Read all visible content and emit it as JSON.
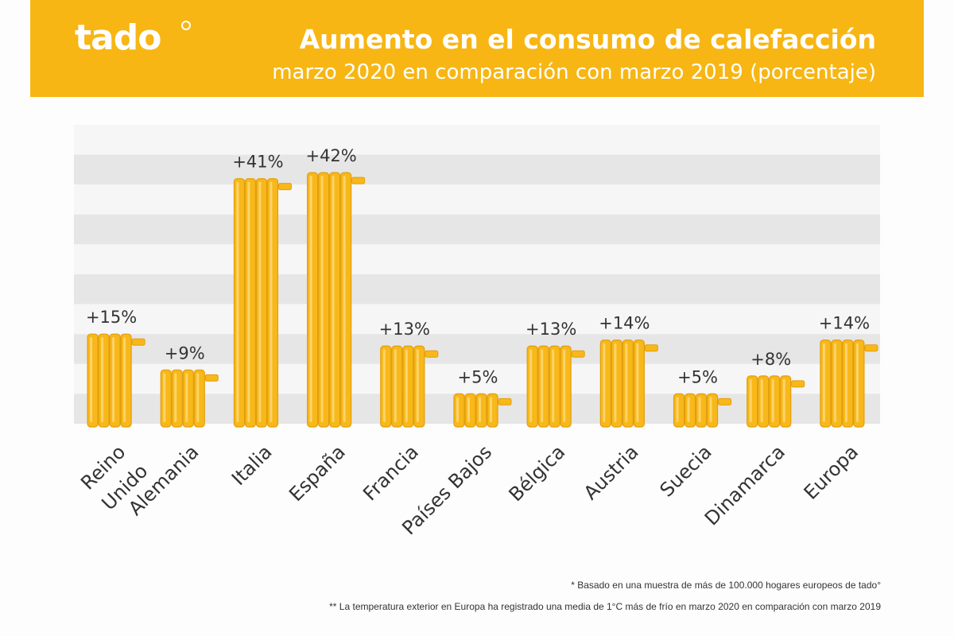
{
  "header": {
    "logo_text": "tado",
    "title": "Aumento en el consumo de calefacción",
    "subtitle": "marzo 2020 en comparación con marzo 2019 (porcentaje)"
  },
  "colors": {
    "banner": "#f7b614",
    "bar": "#f8b81a",
    "bar_shade": "#e29e0c",
    "stripe_dark": "#e6e6e6",
    "stripe_light": "#f6f6f6"
  },
  "chart_data": {
    "type": "bar",
    "title": "Aumento en el consumo de calefacción",
    "subtitle": "marzo 2020 en comparación con marzo 2019 (porcentaje)",
    "categories": [
      "Reino Unido",
      "Alemania",
      "Italia",
      "España",
      "Francia",
      "Países Bajos",
      "Bélgica",
      "Austria",
      "Suecia",
      "Dinamarca",
      "Europa"
    ],
    "category_lines": [
      [
        "Reino",
        "Unido"
      ],
      [
        "Alemania"
      ],
      [
        "Italia"
      ],
      [
        "España"
      ],
      [
        "Francia"
      ],
      [
        "Países Bajos"
      ],
      [
        "Bélgica"
      ],
      [
        "Austria"
      ],
      [
        "Suecia"
      ],
      [
        "Dinamarca"
      ],
      [
        "Europa"
      ]
    ],
    "values": [
      15,
      9,
      41,
      42,
      13,
      5,
      13,
      14,
      5,
      8,
      14
    ],
    "data_labels": [
      "+15%",
      "+9%",
      "+41%",
      "+42%",
      "+13%",
      "+5%",
      "+13%",
      "+14%",
      "+5%",
      "+8%",
      "+14%"
    ],
    "bar_style": "radiator",
    "grid": "alternating horizontal bands",
    "xlabel": "",
    "ylabel": ""
  },
  "footnotes": {
    "note1": "* Basado en una muestra de más de 100.000 hogares europeos de tado°",
    "note2": "** La temperatura exterior en Europa ha registrado una media de 1°C más de frío en marzo 2020 en comparación con marzo 2019"
  }
}
